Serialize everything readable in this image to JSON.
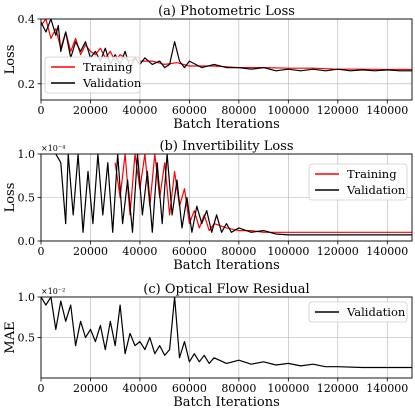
{
  "chart_data": [
    {
      "type": "line",
      "title": "(a) Photometric Loss",
      "xlabel": "Batch Iterations",
      "ylabel": "Loss",
      "xlim": [
        0,
        150000
      ],
      "ylim": [
        0.15,
        0.4
      ],
      "x_ticks": [
        0,
        20000,
        40000,
        60000,
        80000,
        100000,
        120000,
        140000
      ],
      "x_tick_labels": [
        "0",
        "20000",
        "40000",
        "60000",
        "80000",
        "100000",
        "120000",
        "140000"
      ],
      "y_ticks": [
        0.2,
        0.4
      ],
      "y_tick_labels": [
        "0.2",
        "0.4"
      ],
      "y_multiplier": "",
      "grid": true,
      "legend_position": "bottom-left",
      "series": [
        {
          "name": "Training",
          "color": "#ff0000",
          "x": [
            0,
            2000,
            4000,
            6000,
            8000,
            10000,
            12000,
            14000,
            16000,
            18000,
            20000,
            22000,
            24000,
            26000,
            28000,
            30000,
            32000,
            34000,
            36000,
            38000,
            40000,
            45000,
            50000,
            55000,
            60000,
            70000,
            80000,
            90000,
            100000,
            110000,
            120000,
            130000,
            140000,
            150000
          ],
          "y": [
            0.38,
            0.4,
            0.34,
            0.37,
            0.31,
            0.36,
            0.3,
            0.34,
            0.29,
            0.32,
            0.3,
            0.29,
            0.31,
            0.28,
            0.3,
            0.27,
            0.29,
            0.28,
            0.27,
            0.28,
            0.27,
            0.27,
            0.26,
            0.265,
            0.255,
            0.255,
            0.25,
            0.25,
            0.248,
            0.248,
            0.245,
            0.245,
            0.244,
            0.244
          ]
        },
        {
          "name": "Validation",
          "color": "#000000",
          "x": [
            0,
            2000,
            4000,
            6000,
            7000,
            8000,
            10000,
            12000,
            14000,
            16000,
            18000,
            20000,
            22000,
            24000,
            26000,
            28000,
            30000,
            32000,
            34000,
            36000,
            38000,
            40000,
            42000,
            45000,
            48000,
            50000,
            52000,
            54000,
            56000,
            58000,
            60000,
            65000,
            70000,
            75000,
            80000,
            85000,
            90000,
            95000,
            100000,
            105000,
            110000,
            115000,
            120000,
            125000,
            130000,
            135000,
            140000,
            145000,
            150000
          ],
          "y": [
            0.39,
            0.36,
            0.4,
            0.35,
            0.38,
            0.3,
            0.36,
            0.28,
            0.33,
            0.3,
            0.33,
            0.28,
            0.3,
            0.27,
            0.31,
            0.26,
            0.29,
            0.26,
            0.3,
            0.25,
            0.28,
            0.26,
            0.28,
            0.26,
            0.27,
            0.25,
            0.26,
            0.33,
            0.27,
            0.25,
            0.27,
            0.25,
            0.26,
            0.25,
            0.25,
            0.245,
            0.25,
            0.24,
            0.245,
            0.24,
            0.245,
            0.24,
            0.245,
            0.24,
            0.243,
            0.24,
            0.243,
            0.24,
            0.24
          ]
        }
      ]
    },
    {
      "type": "line",
      "title": "(b) Invertibility Loss",
      "xlabel": "Batch Iterations",
      "ylabel": "Loss",
      "xlim": [
        0,
        150000
      ],
      "ylim": [
        0,
        1.0
      ],
      "x_ticks": [
        0,
        20000,
        40000,
        60000,
        80000,
        100000,
        120000,
        140000
      ],
      "x_tick_labels": [
        "0",
        "20000",
        "40000",
        "60000",
        "80000",
        "100000",
        "120000",
        "140000"
      ],
      "y_ticks": [
        0,
        0.5,
        1.0
      ],
      "y_tick_labels": [
        "0.0",
        "0.5",
        "1.0"
      ],
      "y_multiplier": "×10⁻⁴",
      "grid": true,
      "legend_position": "top-right",
      "series": [
        {
          "name": "Training",
          "color": "#ff0000",
          "x": [
            30000,
            32000,
            34000,
            36000,
            38000,
            40000,
            42000,
            44000,
            46000,
            48000,
            50000,
            52000,
            54000,
            56000,
            58000,
            60000,
            62000,
            64000,
            66000,
            68000,
            70000,
            75000,
            80000,
            85000,
            90000,
            95000,
            100000,
            110000,
            120000,
            130000,
            140000,
            150000
          ],
          "y": [
            0.9,
            0.5,
            1.0,
            0.3,
            1.0,
            0.6,
            1.0,
            0.4,
            1.0,
            0.5,
            0.9,
            0.3,
            0.8,
            0.4,
            0.6,
            0.2,
            0.35,
            0.15,
            0.3,
            0.12,
            0.2,
            0.15,
            0.12,
            0.12,
            0.1,
            0.1,
            0.1,
            0.1,
            0.1,
            0.1,
            0.1,
            0.1
          ]
        },
        {
          "name": "Validation",
          "color": "#000000",
          "x": [
            6000,
            8000,
            10000,
            11000,
            13000,
            15000,
            17000,
            19000,
            21000,
            23000,
            25000,
            27000,
            29000,
            31000,
            33000,
            35000,
            37000,
            39000,
            41000,
            43000,
            45000,
            47000,
            49000,
            51000,
            53000,
            55000,
            57000,
            59000,
            61000,
            63000,
            65000,
            67000,
            69000,
            71000,
            73000,
            75000,
            77000,
            80000,
            85000,
            90000,
            95000,
            100000,
            110000,
            120000,
            130000,
            140000,
            150000
          ],
          "y": [
            1.0,
            0.9,
            0.2,
            1.0,
            0.3,
            1.0,
            0.1,
            0.8,
            0.2,
            1.0,
            0.3,
            0.9,
            0.1,
            1.0,
            0.2,
            0.7,
            0.1,
            1.0,
            0.3,
            0.8,
            0.1,
            0.9,
            0.2,
            1.0,
            0.3,
            0.7,
            0.15,
            0.5,
            0.1,
            0.4,
            0.2,
            0.35,
            0.1,
            0.3,
            0.1,
            0.2,
            0.1,
            0.15,
            0.1,
            0.12,
            0.08,
            0.07,
            0.07,
            0.07,
            0.07,
            0.07,
            0.07
          ]
        }
      ]
    },
    {
      "type": "line",
      "title": "(c) Optical Flow Residual",
      "xlabel": "Batch Iterations",
      "ylabel": "MAE",
      "xlim": [
        0,
        150000
      ],
      "ylim": [
        0,
        1.0
      ],
      "x_ticks": [
        0,
        20000,
        40000,
        60000,
        80000,
        100000,
        120000,
        140000
      ],
      "x_tick_labels": [
        "0",
        "20000",
        "40000",
        "60000",
        "80000",
        "100000",
        "120000",
        "140000"
      ],
      "y_ticks": [
        0.5,
        1.0
      ],
      "y_tick_labels": [
        "0.5",
        "1.0"
      ],
      "y_multiplier": "×10⁻²",
      "grid": true,
      "legend_position": "top-right",
      "series": [
        {
          "name": "Validation",
          "color": "#000000",
          "x": [
            0,
            2000,
            4000,
            6000,
            8000,
            10000,
            12000,
            14000,
            16000,
            18000,
            20000,
            22000,
            24000,
            26000,
            28000,
            30000,
            32000,
            34000,
            36000,
            38000,
            40000,
            42000,
            44000,
            46000,
            48000,
            50000,
            52000,
            54000,
            56000,
            58000,
            60000,
            62000,
            64000,
            66000,
            68000,
            70000,
            75000,
            80000,
            85000,
            90000,
            95000,
            100000,
            105000,
            110000,
            115000,
            120000,
            130000,
            140000,
            150000
          ],
          "y": [
            1.0,
            0.9,
            1.0,
            0.6,
            0.95,
            0.7,
            0.9,
            0.4,
            0.7,
            0.5,
            0.6,
            0.45,
            0.65,
            0.35,
            0.7,
            0.4,
            0.9,
            0.3,
            0.55,
            0.4,
            0.45,
            0.35,
            0.5,
            0.3,
            0.4,
            0.28,
            0.35,
            1.0,
            0.25,
            0.45,
            0.2,
            0.3,
            0.2,
            0.28,
            0.18,
            0.25,
            0.18,
            0.22,
            0.17,
            0.2,
            0.16,
            0.18,
            0.15,
            0.17,
            0.14,
            0.14,
            0.13,
            0.13,
            0.13
          ]
        }
      ]
    }
  ]
}
